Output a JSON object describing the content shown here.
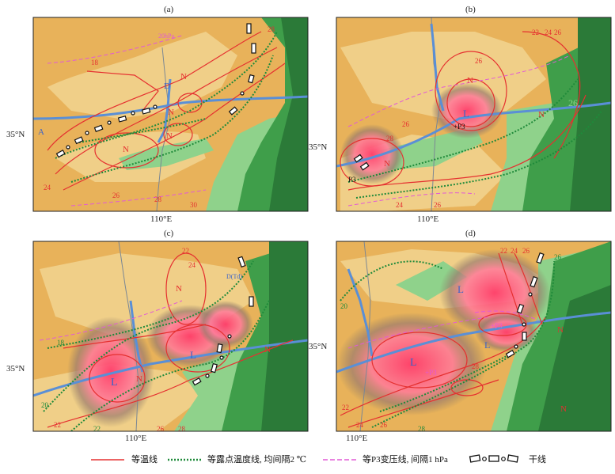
{
  "panels": [
    {
      "id": "a",
      "label": "(a)",
      "lat_label": "35°N",
      "lon_label": "110°E"
    },
    {
      "id": "b",
      "label": "(b)",
      "lat_label": "35°N",
      "lon_label": "110°E"
    },
    {
      "id": "c",
      "label": "(c)",
      "lat_label": "35°N",
      "lon_label": "110°E"
    },
    {
      "id": "d",
      "label": "(d)",
      "lat_label": "35°N",
      "lon_label": "110°E"
    }
  ],
  "annotations": {
    "a": {
      "contours": [
        "18",
        "24",
        "26",
        "28",
        "30",
        "28"
      ],
      "symbols": [
        "N",
        "N",
        "N",
        "N",
        "A",
        "D"
      ],
      "other": "20hPa"
    },
    "b": {
      "contours": [
        "22",
        "24",
        "26",
        "24",
        "26",
        "28"
      ],
      "symbols": [
        "L",
        "N",
        "N",
        "N"
      ],
      "other": "P3"
    },
    "c": {
      "contours": [
        "22",
        "24",
        "18",
        "20",
        "22",
        "26",
        "28"
      ],
      "symbols": [
        "N",
        "L",
        "L",
        "N",
        "N"
      ],
      "other": "D(Td)"
    },
    "d": {
      "contours": [
        "20",
        "22",
        "24",
        "26",
        "28",
        "26",
        "28",
        "22",
        "24",
        "26"
      ],
      "symbols": [
        "L",
        "L",
        "L",
        "N",
        "N"
      ],
      "other": "+P3"
    }
  },
  "legend": {
    "isotherm": "等温线",
    "dewpoint": "等露点温度线, 均间隔2 ℃",
    "p3": "等P3变压线, 间隔1 hPa",
    "dryline": "干线"
  },
  "colors": {
    "terrain_low": "#e8b25a",
    "terrain_mid": "#f0cf88",
    "terrain_light_green": "#8fd28b",
    "terrain_green": "#3f9e4a",
    "terrain_dark_green": "#2b7a38",
    "river": "#5a8fd6",
    "isotherm": "#e53030",
    "dewpoint": "#1f8a3a",
    "p3": "#e25ad6",
    "precip_core": "#ff5070"
  }
}
